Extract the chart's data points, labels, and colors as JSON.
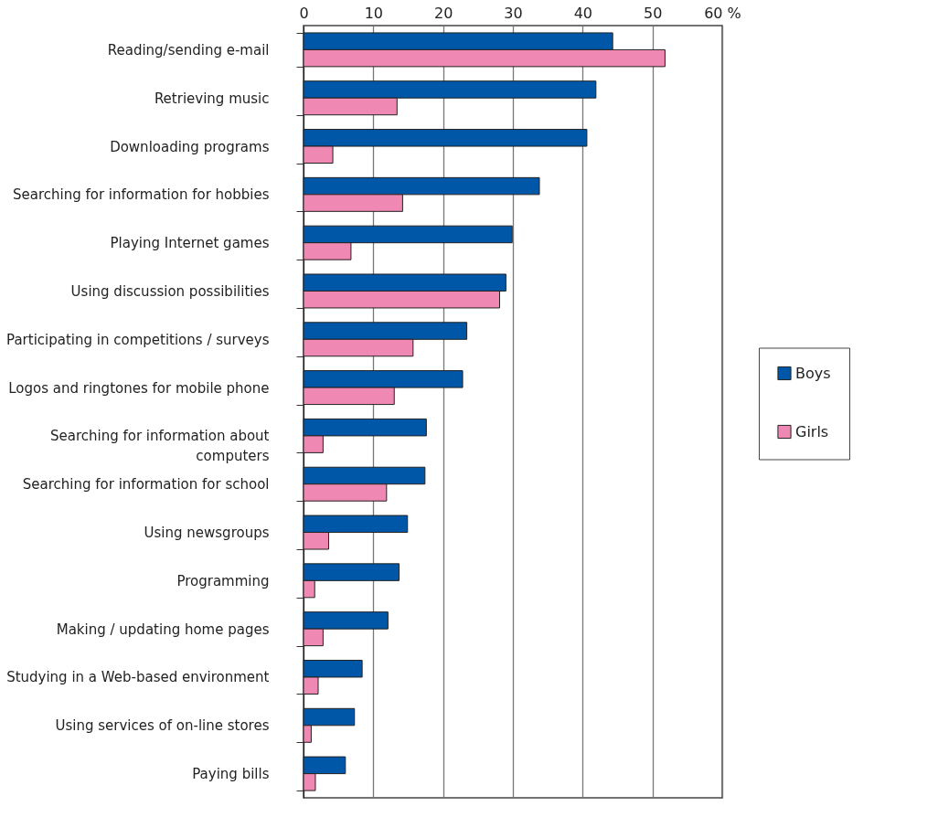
{
  "chart_data": {
    "type": "bar",
    "orientation": "horizontal",
    "categories": [
      "Reading/sending e-mail",
      "Retrieving music",
      "Downloading programs",
      "Searching for information for hobbies",
      "Playing Internet games",
      "Using discussion possibilities",
      "Participating in competitions / surveys",
      "Logos and ringtones for mobile phone",
      "Searching for information about\ncomputers",
      "Searching for information for school",
      "Using newsgroups",
      "Programming",
      "Making / updating home pages",
      "Studying in a Web-based environment",
      "Using services of on-line stores",
      "Paying bills"
    ],
    "series": [
      {
        "name": "Boys",
        "color": "#0057a8",
        "values": [
          44.3,
          41.9,
          40.6,
          33.8,
          29.9,
          29.0,
          23.4,
          22.8,
          17.6,
          17.4,
          14.9,
          13.7,
          12.1,
          8.4,
          7.3,
          6.0
        ]
      },
      {
        "name": "Girls",
        "color": "#f088b4",
        "values": [
          51.8,
          13.4,
          4.2,
          14.2,
          6.8,
          28.1,
          15.7,
          13.0,
          2.8,
          11.9,
          3.6,
          1.6,
          2.8,
          2.1,
          1.1,
          1.7
        ]
      }
    ],
    "xlim": [
      0,
      60
    ],
    "xticks": [
      0,
      10,
      20,
      30,
      40,
      50,
      {
        "value": 60,
        "label": "60 %"
      }
    ],
    "grid": "x",
    "legend": "right"
  }
}
